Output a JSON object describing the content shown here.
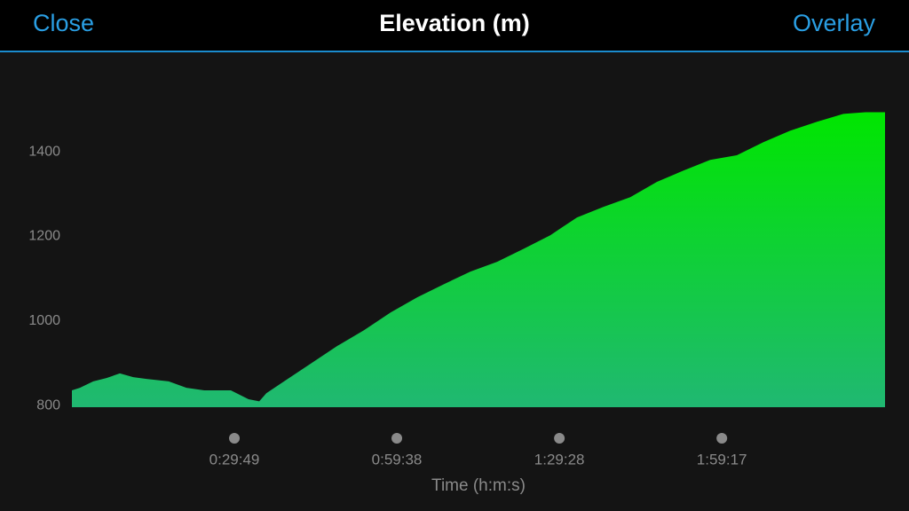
{
  "buttons": {
    "left": "Close",
    "right": "Overlay"
  },
  "chart_data": {
    "type": "area",
    "title": "Elevation (m)",
    "xlabel": "Time (h:m:s)",
    "x": [
      0,
      88,
      235,
      381,
      528,
      675,
      821,
      1066,
      1261,
      1457,
      1750,
      1945,
      2063,
      2141,
      2336,
      2630,
      2923,
      3216,
      3509,
      3803,
      4096,
      4389,
      4682,
      4976,
      5269,
      5562,
      5855,
      6149,
      6442,
      6735,
      7028,
      7322,
      7615,
      7908,
      8201,
      8495,
      8739,
      8954
    ],
    "values": [
      836,
      842,
      857,
      865,
      876,
      867,
      863,
      857,
      842,
      836,
      836,
      815,
      810,
      829,
      857,
      899,
      941,
      978,
      1020,
      1056,
      1087,
      1117,
      1140,
      1171,
      1203,
      1245,
      1270,
      1293,
      1329,
      1356,
      1381,
      1392,
      1423,
      1450,
      1471,
      1490,
      1494,
      1494
    ],
    "xlim": [
      0,
      8954
    ],
    "xticks": [
      {
        "value": 1789,
        "label": "0:29:49"
      },
      {
        "value": 3578,
        "label": "0:59:38"
      },
      {
        "value": 5368,
        "label": "1:29:28"
      },
      {
        "value": 7157,
        "label": "1:59:17"
      }
    ],
    "ylim": [
      796,
      1560
    ],
    "yticks": [
      800,
      1000,
      1200,
      1400
    ],
    "color_top": "#00e600",
    "color_bottom": "#20b872",
    "grid": false
  }
}
